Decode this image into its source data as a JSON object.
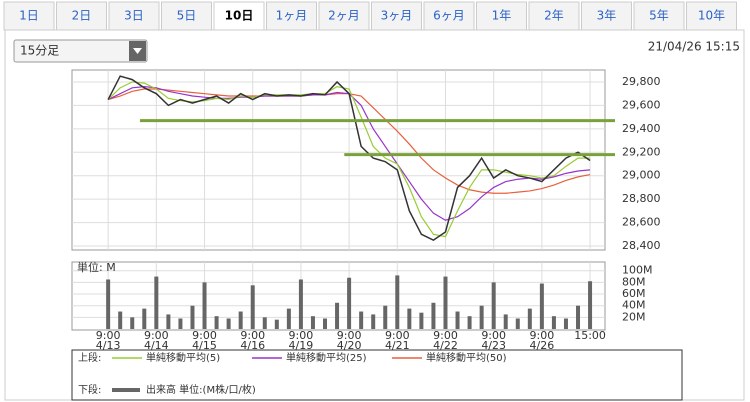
{
  "tabs": [
    "1日",
    "2日",
    "3日",
    "5日",
    "10日",
    "1ヶ月",
    "2ヶ月",
    "3ヶ月",
    "6ヶ月",
    "1年",
    "2年",
    "3年",
    "5年",
    "10年"
  ],
  "selected_tab": 4,
  "dropdown": "15分足",
  "timestamp": "21/04/26 15:15",
  "chart_data": [
    {
      "type": "line",
      "legend_label": "上段:",
      "xlim": [
        -0.75,
        10.31
      ],
      "xticks": [
        0,
        1,
        2,
        3,
        4,
        5,
        6,
        7,
        8,
        9,
        10
      ],
      "ylim": [
        28366,
        29902
      ],
      "yticks": [
        {
          "value": 28400,
          "label": "28,400"
        },
        {
          "value": 28600,
          "label": "28,600"
        },
        {
          "value": 28800,
          "label": "28,800"
        },
        {
          "value": 29000,
          "label": "29,000"
        },
        {
          "value": 29200,
          "label": "29,200"
        },
        {
          "value": 29400,
          "label": "29,400"
        },
        {
          "value": 29600,
          "label": "29,600"
        },
        {
          "value": 29800,
          "label": "29,800"
        }
      ],
      "grid": true,
      "color": "#333333",
      "x": [
        0,
        0.25,
        0.5,
        0.75,
        1,
        1.25,
        1.5,
        1.75,
        2,
        2.25,
        2.5,
        2.75,
        3,
        3.25,
        3.5,
        3.75,
        4,
        4.25,
        4.5,
        4.75,
        5,
        5.25,
        5.5,
        5.75,
        6,
        6.25,
        6.5,
        6.75,
        7,
        7.25,
        7.5,
        7.75,
        8,
        8.25,
        8.5,
        8.75,
        9,
        9.25,
        9.5,
        9.75,
        10
      ],
      "values": [
        29650,
        29850,
        29820,
        29750,
        29700,
        29600,
        29650,
        29620,
        29650,
        29680,
        29620,
        29700,
        29650,
        29700,
        29680,
        29690,
        29680,
        29700,
        29690,
        29800,
        29700,
        29250,
        29150,
        29120,
        29050,
        28700,
        28500,
        28450,
        28520,
        28900,
        29000,
        29150,
        28980,
        29050,
        29000,
        28980,
        28950,
        29050,
        29150,
        29200,
        29130
      ],
      "series": [
        {
          "name": "単純移動平均(5)",
          "color": "#99cc33",
          "values": [
            29650,
            29750,
            29800,
            29790,
            29740,
            29660,
            29640,
            29630,
            29640,
            29660,
            29650,
            29680,
            29670,
            29690,
            29690,
            29690,
            29690,
            29700,
            29700,
            29760,
            29740,
            29500,
            29250,
            29150,
            29100,
            28900,
            28650,
            28500,
            28480,
            28700,
            28900,
            29050,
            29050,
            29030,
            29010,
            29000,
            28980,
            29000,
            29080,
            29150,
            29150
          ]
        },
        {
          "name": "単純移動平均(25)",
          "color": "#9933cc",
          "values": [
            29650,
            29700,
            29750,
            29760,
            29750,
            29720,
            29700,
            29680,
            29670,
            29660,
            29660,
            29670,
            29670,
            29680,
            29680,
            29680,
            29680,
            29690,
            29690,
            29710,
            29700,
            29600,
            29400,
            29250,
            29100,
            28950,
            28800,
            28680,
            28620,
            28650,
            28720,
            28820,
            28900,
            28950,
            28970,
            28980,
            28970,
            28990,
            29020,
            29040,
            29050
          ]
        },
        {
          "name": "単純移動平均(50)",
          "color": "#e8603c",
          "values": [
            29650,
            29680,
            29720,
            29740,
            29740,
            29730,
            29720,
            29710,
            29700,
            29690,
            29680,
            29680,
            29680,
            29680,
            29680,
            29680,
            29680,
            29690,
            29690,
            29700,
            29700,
            29680,
            29580,
            29480,
            29380,
            29270,
            29150,
            29050,
            28980,
            28920,
            28880,
            28860,
            28850,
            28850,
            28860,
            28870,
            28890,
            28920,
            28960,
            28990,
            29010
          ]
        }
      ],
      "hlines": [
        {
          "value": 29470,
          "x": [
            0.66,
            10.31
          ],
          "color": "#7aa03c"
        },
        {
          "value": 29180,
          "x": [
            4.9,
            10.31
          ],
          "color": "#7aa03c"
        }
      ]
    },
    {
      "type": "bar",
      "legend_label": "下段:",
      "unit_label": "単位: M",
      "xlim": [
        -0.75,
        10.31
      ],
      "xticks": [
        {
          "value": 0,
          "label": "9:00"
        },
        {
          "value": 1,
          "label": "9:00"
        },
        {
          "value": 2,
          "label": "9:00"
        },
        {
          "value": 3,
          "label": "9:00"
        },
        {
          "value": 4,
          "label": "9:00"
        },
        {
          "value": 5,
          "label": "9:00"
        },
        {
          "value": 6,
          "label": "9:00"
        },
        {
          "value": 7,
          "label": "9:00"
        },
        {
          "value": 8,
          "label": "9:00"
        },
        {
          "value": 9,
          "label": "9:00"
        },
        {
          "value": 10,
          "label": "15:00"
        }
      ],
      "xtick_dates": [
        "4/13",
        "4/14",
        "4/15",
        "4/16",
        "4/19",
        "4/20",
        "4/21",
        "4/22",
        "4/23",
        "4/26"
      ],
      "ylim": [
        0,
        115
      ],
      "yticks": [
        {
          "value": 20,
          "label": "20M"
        },
        {
          "value": 40,
          "label": "40M"
        },
        {
          "value": 60,
          "label": "60M"
        },
        {
          "value": 80,
          "label": "80M"
        },
        {
          "value": 100,
          "label": "100M"
        }
      ],
      "grid": true,
      "series": [
        {
          "name": "出来高 単位:(M株/口/枚)",
          "color": "#666666",
          "x": [
            0,
            0.25,
            0.5,
            0.75,
            1,
            1.25,
            1.5,
            1.75,
            2,
            2.25,
            2.5,
            2.75,
            3,
            3.25,
            3.5,
            3.75,
            4,
            4.25,
            4.5,
            4.75,
            5,
            5.25,
            5.5,
            5.75,
            6,
            6.25,
            6.5,
            6.75,
            7,
            7.25,
            7.5,
            7.75,
            8,
            8.25,
            8.5,
            8.75,
            9,
            9.25,
            9.5,
            9.75,
            10
          ],
          "values": [
            85,
            30,
            20,
            35,
            90,
            25,
            18,
            40,
            80,
            22,
            18,
            30,
            75,
            20,
            16,
            35,
            85,
            22,
            18,
            45,
            88,
            30,
            25,
            40,
            92,
            35,
            28,
            45,
            90,
            30,
            22,
            40,
            80,
            25,
            18,
            35,
            78,
            22,
            18,
            40,
            82
          ]
        }
      ]
    }
  ]
}
